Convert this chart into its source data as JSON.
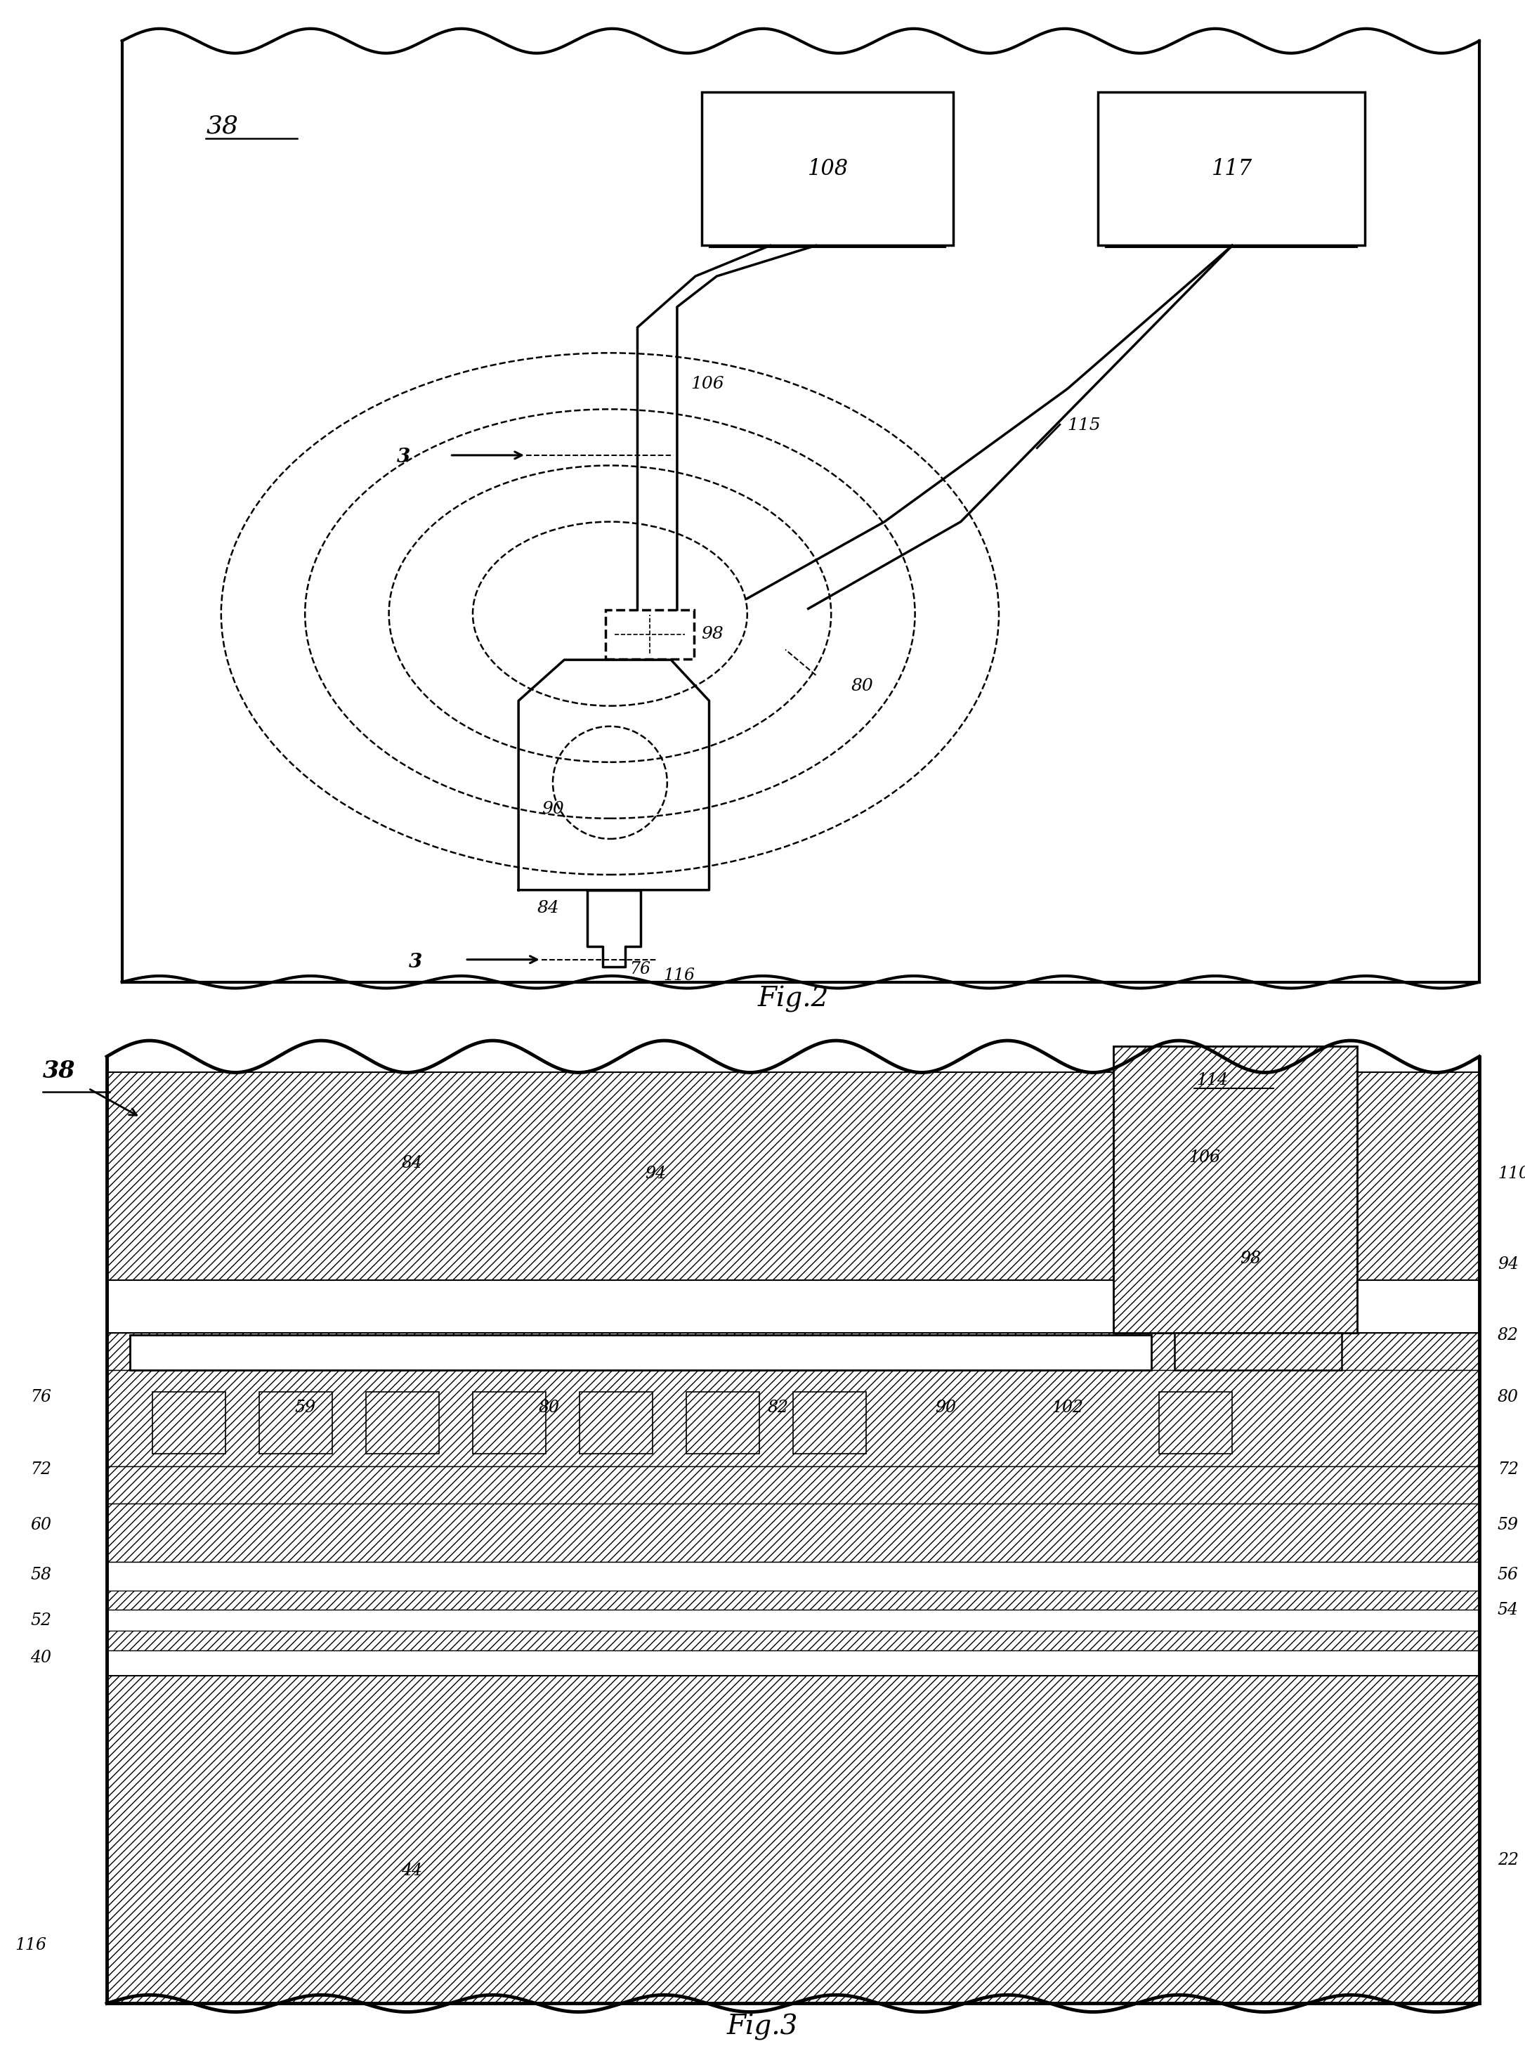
{
  "fig_width": 21.71,
  "fig_height": 29.12,
  "bg_color": "#ffffff",
  "caption1": "Fig.2",
  "caption2": "Fig.3"
}
